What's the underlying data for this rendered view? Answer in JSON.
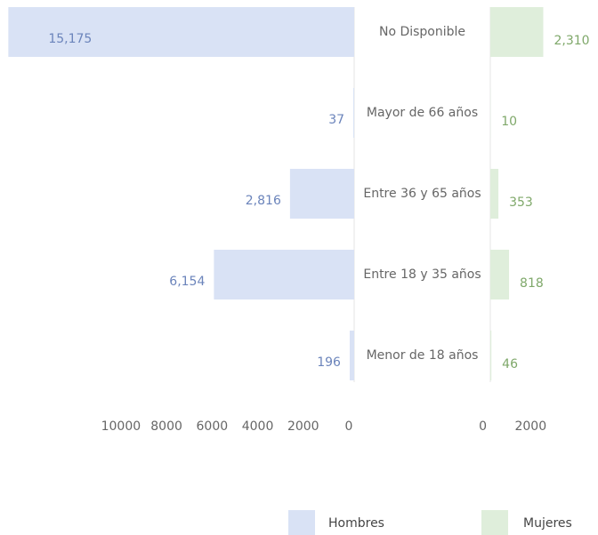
{
  "chart_data": {
    "type": "pyramid",
    "categories": [
      "No Disponible",
      "Mayor de 66 años",
      "Entre 36 y 65 años",
      "Entre 18 y 35 años",
      "Menor de 18 años"
    ],
    "series": [
      {
        "name": "Hombres",
        "color": "#d9e2f5",
        "label_color": "#6b84bb",
        "values": [
          15175,
          37,
          2816,
          6154,
          196
        ],
        "value_labels": [
          "15,175",
          "37",
          "2,816",
          "6,154",
          "196"
        ]
      },
      {
        "name": "Mujeres",
        "color": "#dfeedb",
        "label_color": "#7fa86a",
        "values": [
          2310,
          10,
          353,
          818,
          46
        ],
        "value_labels": [
          "2,310",
          "10",
          "353",
          "818",
          "46"
        ]
      }
    ],
    "xlim": [
      0,
      15500
    ],
    "xticks": [
      10000,
      8000,
      6000,
      4000,
      2000,
      0
    ],
    "x2lim": [
      0,
      4700
    ],
    "x2ticks": [
      0,
      2000
    ]
  }
}
